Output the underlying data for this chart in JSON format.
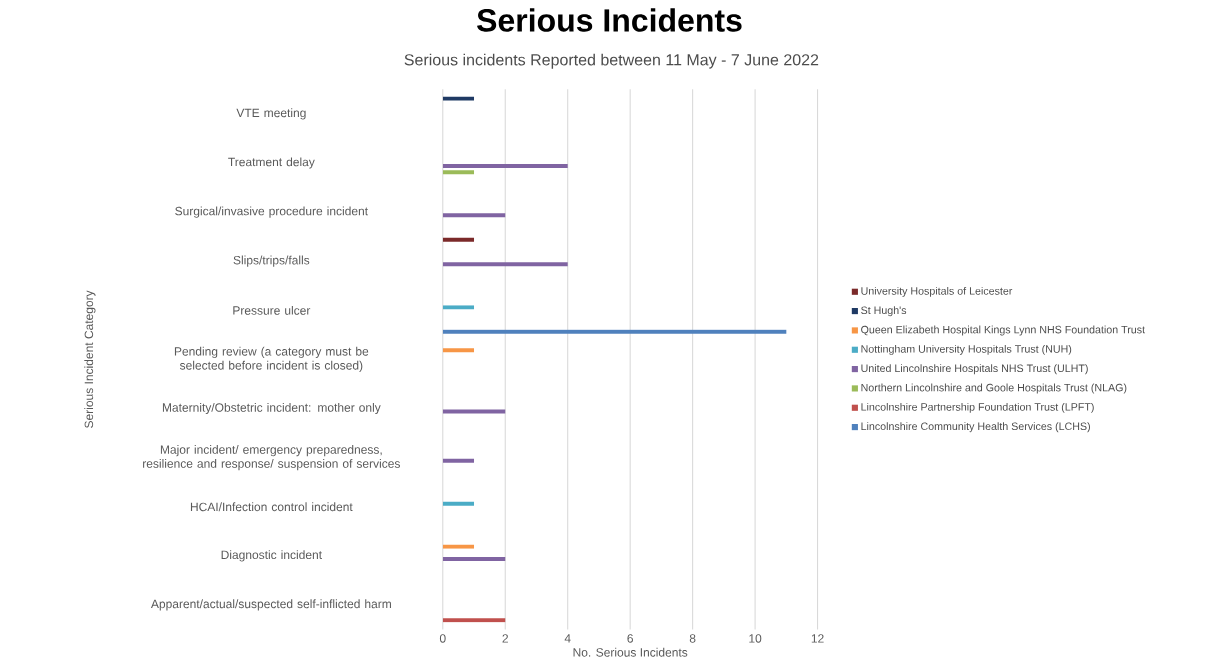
{
  "chart_data": {
    "type": "bar",
    "orientation": "horizontal",
    "title": "Serious Incidents",
    "subtitle": "Serious incidents Reported between 11 May - 7 June 2022",
    "xlabel": "No. Serious Incidents",
    "ylabel": "Serious Incident Category",
    "categories": [
      "VTE meeting",
      "Treatment delay",
      "Surgical/invasive procedure incident",
      "Slips/trips/falls",
      "Pressure ulcer",
      "Pending review (a category must be selected before incident is closed)",
      "Maternity/Obstetric incident: mother only",
      "Major incident/ emergency preparedness, resilience and response/ suspension of services",
      "HCAI/Infection control incident",
      "Diagnostic incident",
      "Apparent/actual/suspected self-inflicted harm"
    ],
    "series": [
      {
        "name": "University Hospitals of Leicester",
        "color": "#7b2a2a",
        "values": [
          null,
          null,
          null,
          1,
          null,
          null,
          null,
          null,
          null,
          null,
          null
        ]
      },
      {
        "name": "St Hugh's",
        "color": "#1f3a64",
        "values": [
          1,
          null,
          null,
          null,
          null,
          null,
          null,
          null,
          null,
          null,
          null
        ]
      },
      {
        "name": "Queen Elizabeth Hospital Kings Lynn NHS Foundation Trust",
        "color": "#f79646",
        "values": [
          null,
          null,
          null,
          null,
          null,
          1,
          null,
          null,
          null,
          1,
          null
        ]
      },
      {
        "name": "Nottingham University Hospitals Trust (NUH)",
        "color": "#4bacc6",
        "values": [
          null,
          null,
          null,
          null,
          1,
          null,
          null,
          null,
          1,
          null,
          null
        ]
      },
      {
        "name": "United Lincolnshire Hospitals NHS Trust (ULHT)",
        "color": "#8064a2",
        "values": [
          null,
          4,
          2,
          4,
          null,
          null,
          2,
          1,
          null,
          2,
          null
        ]
      },
      {
        "name": "Northern Lincolnshire and Goole Hospitals Trust (NLAG)",
        "color": "#9bbb59",
        "values": [
          null,
          1,
          null,
          null,
          null,
          null,
          null,
          null,
          null,
          null,
          null
        ]
      },
      {
        "name": "Lincolnshire Partnership Foundation Trust (LPFT)",
        "color": "#c0504d",
        "values": [
          null,
          null,
          null,
          null,
          null,
          null,
          null,
          null,
          null,
          null,
          2
        ]
      },
      {
        "name": "Lincolnshire Community Health Services (LCHS)",
        "color": "#4f81bd",
        "values": [
          null,
          null,
          null,
          null,
          11,
          null,
          null,
          null,
          null,
          null,
          null
        ]
      }
    ],
    "xlim": [
      0,
      12
    ],
    "xticks": [
      0,
      2,
      4,
      6,
      8,
      10,
      12
    ],
    "grid": "x",
    "legend": "right"
  }
}
